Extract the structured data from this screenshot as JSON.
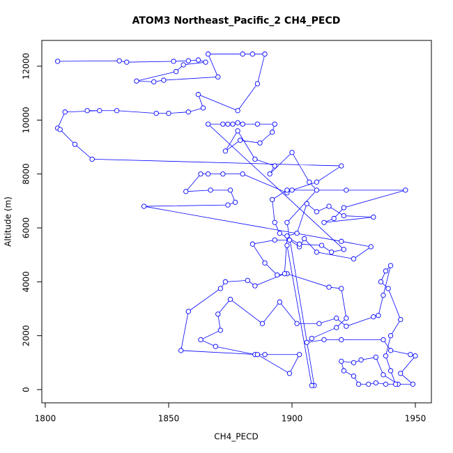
{
  "chart_data": {
    "type": "line",
    "title": "ATOM3 Northeast_Pacific_2 CH4_PECD",
    "x_label": "CH4_PECD",
    "y_label": "Altitude (m)",
    "color": "#0000ff",
    "markers": true,
    "xlim": [
      1798.6,
      1956.5
    ],
    "ylim": [
      -491,
      12956
    ],
    "xticks": [
      1800,
      1850,
      1900,
      1950
    ],
    "yticks": [
      0,
      2000,
      4000,
      6000,
      8000,
      10000,
      12000
    ],
    "x": [
      1805,
      1830,
      1833,
      1852,
      1858,
      1862,
      1865,
      1856,
      1853,
      1837,
      1844,
      1848,
      1870,
      1866,
      1880,
      1884,
      1889,
      1886,
      1878,
      1862,
      1864,
      1858,
      1850,
      1845,
      1829,
      1817,
      1822,
      1808,
      1805,
      1806,
      1812,
      1819,
      1920,
      1910,
      1900,
      1898,
      1880,
      1872,
      1866,
      1863,
      1857,
      1867,
      1875,
      1877,
      1874,
      1840,
      1920,
      1932,
      1925,
      1910,
      1905,
      1903,
      1899,
      1893,
      1884,
      1889,
      1894,
      1898,
      1915,
      1920,
      1922,
      1918,
      1908,
      1906,
      1913,
      1920,
      1937,
      1940,
      1948,
      1950,
      1944,
      1949,
      1943,
      1937,
      1934,
      1928,
      1925,
      1920,
      1921,
      1925,
      1927,
      1931,
      1934,
      1938,
      1942,
      1940,
      1938,
      1940,
      1944,
      1939,
      1936,
      1938,
      1940,
      1937,
      1935,
      1933,
      1922,
      1918,
      1911,
      1902,
      1895,
      1888,
      1875,
      1870,
      1871,
      1863,
      1869,
      1885,
      1889,
      1903,
      1899,
      1886,
      1855,
      1858,
      1871,
      1873,
      1882,
      1885,
      1897,
      1898,
      1902,
      1906,
      1910,
      1915,
      1921,
      1933,
      1913,
      1917,
      1921,
      1946,
      1922,
      1898,
      1892,
      1893,
      1895,
      1903,
      1912,
      1916,
      1921,
      1866,
      1872,
      1874,
      1876,
      1878,
      1880,
      1886,
      1893,
      1892,
      1887,
      1879,
      1873,
      1878,
      1885,
      1893,
      1891,
      1900,
      1907,
      1910,
      1898,
      1909,
      1908,
      1898
    ],
    "values": [
      12180,
      12200,
      12150,
      12180,
      12200,
      12230,
      12150,
      12050,
      11800,
      11450,
      11420,
      11480,
      11600,
      12450,
      12450,
      12450,
      12450,
      11350,
      10350,
      10950,
      10450,
      10300,
      10250,
      10250,
      10350,
      10350,
      10350,
      10300,
      9700,
      9650,
      9100,
      8550,
      8300,
      7700,
      7400,
      7300,
      8000,
      8000,
      8000,
      8000,
      7350,
      7400,
      7400,
      6950,
      6850,
      6800,
      5500,
      5300,
      4850,
      5100,
      5600,
      5300,
      5550,
      5550,
      5400,
      4700,
      4250,
      4300,
      3800,
      3750,
      2650,
      2300,
      1900,
      1750,
      1850,
      1850,
      1850,
      1450,
      1300,
      1250,
      600,
      200,
      200,
      550,
      1200,
      1100,
      1000,
      1050,
      700,
      500,
      200,
      200,
      250,
      200,
      200,
      700,
      1250,
      2000,
      2600,
      3750,
      4000,
      4400,
      4600,
      3500,
      2750,
      2700,
      2350,
      2650,
      2450,
      2450,
      3250,
      2450,
      3350,
      2800,
      2200,
      1850,
      1600,
      1300,
      1300,
      1300,
      600,
      1300,
      1450,
      2900,
      3750,
      4000,
      4050,
      3850,
      4300,
      5700,
      5800,
      6900,
      6600,
      6800,
      6450,
      6400,
      6200,
      6350,
      6750,
      7400,
      7400,
      7400,
      7050,
      6200,
      5800,
      5400,
      5350,
      5100,
      5200,
      9850,
      9850,
      9850,
      9850,
      9900,
      9850,
      9850,
      9850,
      9550,
      9150,
      9250,
      8850,
      9600,
      8550,
      8300,
      8000,
      8800,
      7700,
      7400,
      6200,
      150,
      150,
      5350
    ]
  }
}
